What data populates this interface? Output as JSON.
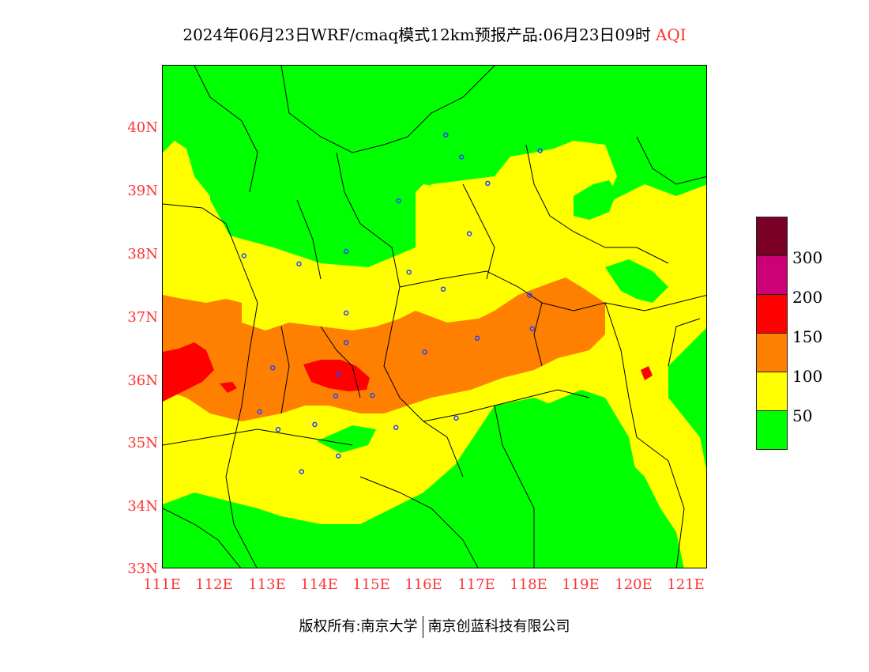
{
  "title": {
    "main": "2024年06月23日WRF/cmaq模式12km预报产品:06月23日09时",
    "variable": "AQI"
  },
  "axes": {
    "lat_labels": [
      "40N",
      "39N",
      "38N",
      "37N",
      "36N",
      "35N",
      "34N",
      "33N"
    ],
    "lon_labels": [
      "111E",
      "112E",
      "113E",
      "114E",
      "115E",
      "116E",
      "117E",
      "118E",
      "119E",
      "120E",
      "121E"
    ],
    "lat_range": [
      33,
      41
    ],
    "lon_range": [
      111,
      121.4
    ]
  },
  "legend": {
    "labels": [
      "300",
      "200",
      "150",
      "100",
      "50"
    ],
    "classes": [
      {
        "range": "0-50",
        "color": "#00ff00"
      },
      {
        "range": "50-100",
        "color": "#ffff00"
      },
      {
        "range": "100-150",
        "color": "#ff8000"
      },
      {
        "range": "150-200",
        "color": "#ff0000"
      },
      {
        "range": "200-300",
        "color": "#cc0077"
      },
      {
        "range": ">300",
        "color": "#7a0025"
      }
    ]
  },
  "footer": {
    "left": "版权所有:南京大学",
    "right": "南京创蓝科技有限公司"
  },
  "colors": {
    "good": "#00ff00",
    "moderate": "#ffff00",
    "sensitive": "#ff8000",
    "unhealthy": "#ff0000",
    "very_unhealthy": "#cc0077",
    "hazardous": "#7a0025",
    "station_marker": "#2244ff",
    "tick_label": "#ff3333"
  },
  "stations": [
    {
      "lon": 116.4,
      "lat": 39.9
    },
    {
      "lon": 116.7,
      "lat": 39.55
    },
    {
      "lon": 117.2,
      "lat": 39.13
    },
    {
      "lon": 118.2,
      "lat": 39.65
    },
    {
      "lon": 115.5,
      "lat": 38.85
    },
    {
      "lon": 116.85,
      "lat": 38.33
    },
    {
      "lon": 112.55,
      "lat": 37.98
    },
    {
      "lon": 113.6,
      "lat": 37.85
    },
    {
      "lon": 114.5,
      "lat": 38.05
    },
    {
      "lon": 115.7,
      "lat": 37.72
    },
    {
      "lon": 116.35,
      "lat": 37.45
    },
    {
      "lon": 118.0,
      "lat": 37.35
    },
    {
      "lon": 118.05,
      "lat": 36.82
    },
    {
      "lon": 117.0,
      "lat": 36.67
    },
    {
      "lon": 114.5,
      "lat": 37.07
    },
    {
      "lon": 114.5,
      "lat": 36.6
    },
    {
      "lon": 116.0,
      "lat": 36.45
    },
    {
      "lon": 113.1,
      "lat": 36.2
    },
    {
      "lon": 114.35,
      "lat": 36.1
    },
    {
      "lon": 114.3,
      "lat": 35.75
    },
    {
      "lon": 115.0,
      "lat": 35.76
    },
    {
      "lon": 112.85,
      "lat": 35.5
    },
    {
      "lon": 113.9,
      "lat": 35.3
    },
    {
      "lon": 113.2,
      "lat": 35.22
    },
    {
      "lon": 115.45,
      "lat": 35.25
    },
    {
      "lon": 116.6,
      "lat": 35.4
    },
    {
      "lon": 114.35,
      "lat": 34.8
    },
    {
      "lon": 113.65,
      "lat": 34.55
    }
  ]
}
